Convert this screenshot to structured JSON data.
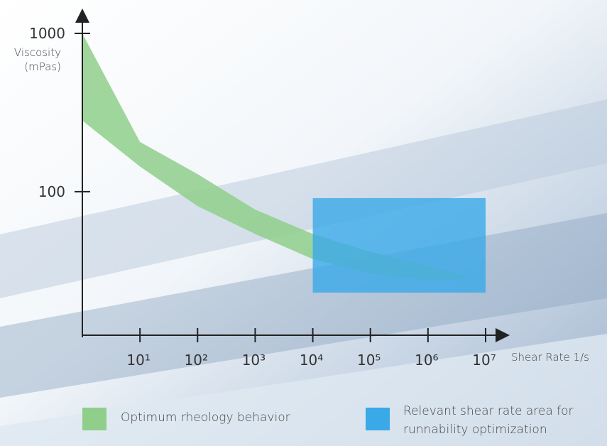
{
  "chart_data": {
    "type": "band",
    "x_label": "Shear Rate 1/s",
    "y_label": "Viscosity (mPas)",
    "log_x": true,
    "log_y": true,
    "xlim": [
      1,
      10000000
    ],
    "ylim": [
      12,
      1000
    ],
    "xticks": [
      {
        "value": 10,
        "label": "10¹"
      },
      {
        "value": 100,
        "label": "10²"
      },
      {
        "value": 1000,
        "label": "10³"
      },
      {
        "value": 10000,
        "label": "10⁴"
      },
      {
        "value": 100000,
        "label": "10⁵"
      },
      {
        "value": 1000000,
        "label": "10⁶"
      },
      {
        "value": 10000000,
        "label": "10⁷"
      }
    ],
    "yticks": [
      100,
      1000
    ],
    "x": [
      1,
      10,
      100,
      1000,
      10000,
      100000,
      1000000,
      7000000
    ],
    "band": {
      "name": "Optimum rheology behavior",
      "color": "#8fcf8b",
      "upper": [
        1000,
        206,
        129,
        77,
        54,
        41.6,
        33.8,
        28
      ],
      "lower": [
        281,
        144,
        81,
        54,
        37.5,
        30.5,
        27.5,
        28
      ]
    },
    "region": {
      "name": "Relevant shear rate area for runnability optimization",
      "color": "#3aa9e8",
      "x": [
        10000,
        10000000
      ],
      "y": [
        23,
        91
      ]
    }
  }
}
